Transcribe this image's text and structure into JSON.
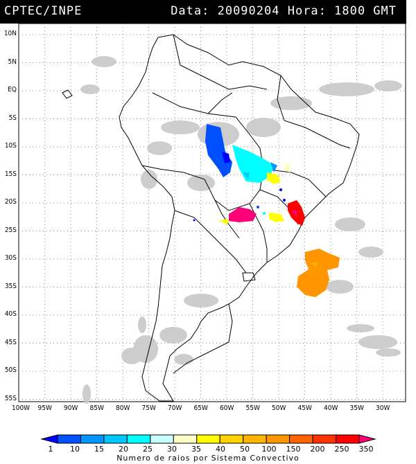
{
  "header": {
    "source": "CPTEC/INPE",
    "date_time": "Data: 20090204 Hora: 1800 GMT"
  },
  "map": {
    "latitude_labels": [
      "10N",
      "5N",
      "EQ",
      "5S",
      "10S",
      "15S",
      "20S",
      "25S",
      "30S",
      "35S",
      "40S",
      "45S",
      "50S",
      "55S"
    ],
    "longitude_labels": [
      "100W",
      "95W",
      "90W",
      "85W",
      "80W",
      "75W",
      "70W",
      "65W",
      "60W",
      "55W",
      "50W",
      "45W",
      "40W",
      "35W",
      "30W"
    ],
    "background_color": "#ffffff",
    "cloud_color": "#c8c8c8",
    "coast_color": "#000000"
  },
  "legend": {
    "title": "Numero de raios por Sistema Convectivo",
    "ticks": [
      "1",
      "10",
      "15",
      "20",
      "25",
      "30",
      "35",
      "40",
      "50",
      "100",
      "150",
      "200",
      "250",
      "350"
    ],
    "colors": [
      "#0000ff",
      "#0050ff",
      "#0096ff",
      "#00c8ff",
      "#00ffff",
      "#c8ffff",
      "#ffffc8",
      "#ffff00",
      "#ffd200",
      "#ffb400",
      "#ff9600",
      "#ff6400",
      "#ff3200",
      "#ff0000",
      "#ff0078"
    ]
  },
  "systems": [
    {
      "id": "blue-amazon",
      "color": "#0050ff"
    },
    {
      "id": "cyan-central",
      "color": "#00ffff"
    },
    {
      "id": "yellow-goias",
      "color": "#ffff00"
    },
    {
      "id": "magenta-paraguay",
      "color": "#ff0078"
    },
    {
      "id": "yellow-sp",
      "color": "#ffff00"
    },
    {
      "id": "red-rj",
      "color": "#ff0000"
    },
    {
      "id": "orange-atlantic",
      "color": "#ff9600"
    },
    {
      "id": "blue-small",
      "color": "#0000ff"
    }
  ]
}
